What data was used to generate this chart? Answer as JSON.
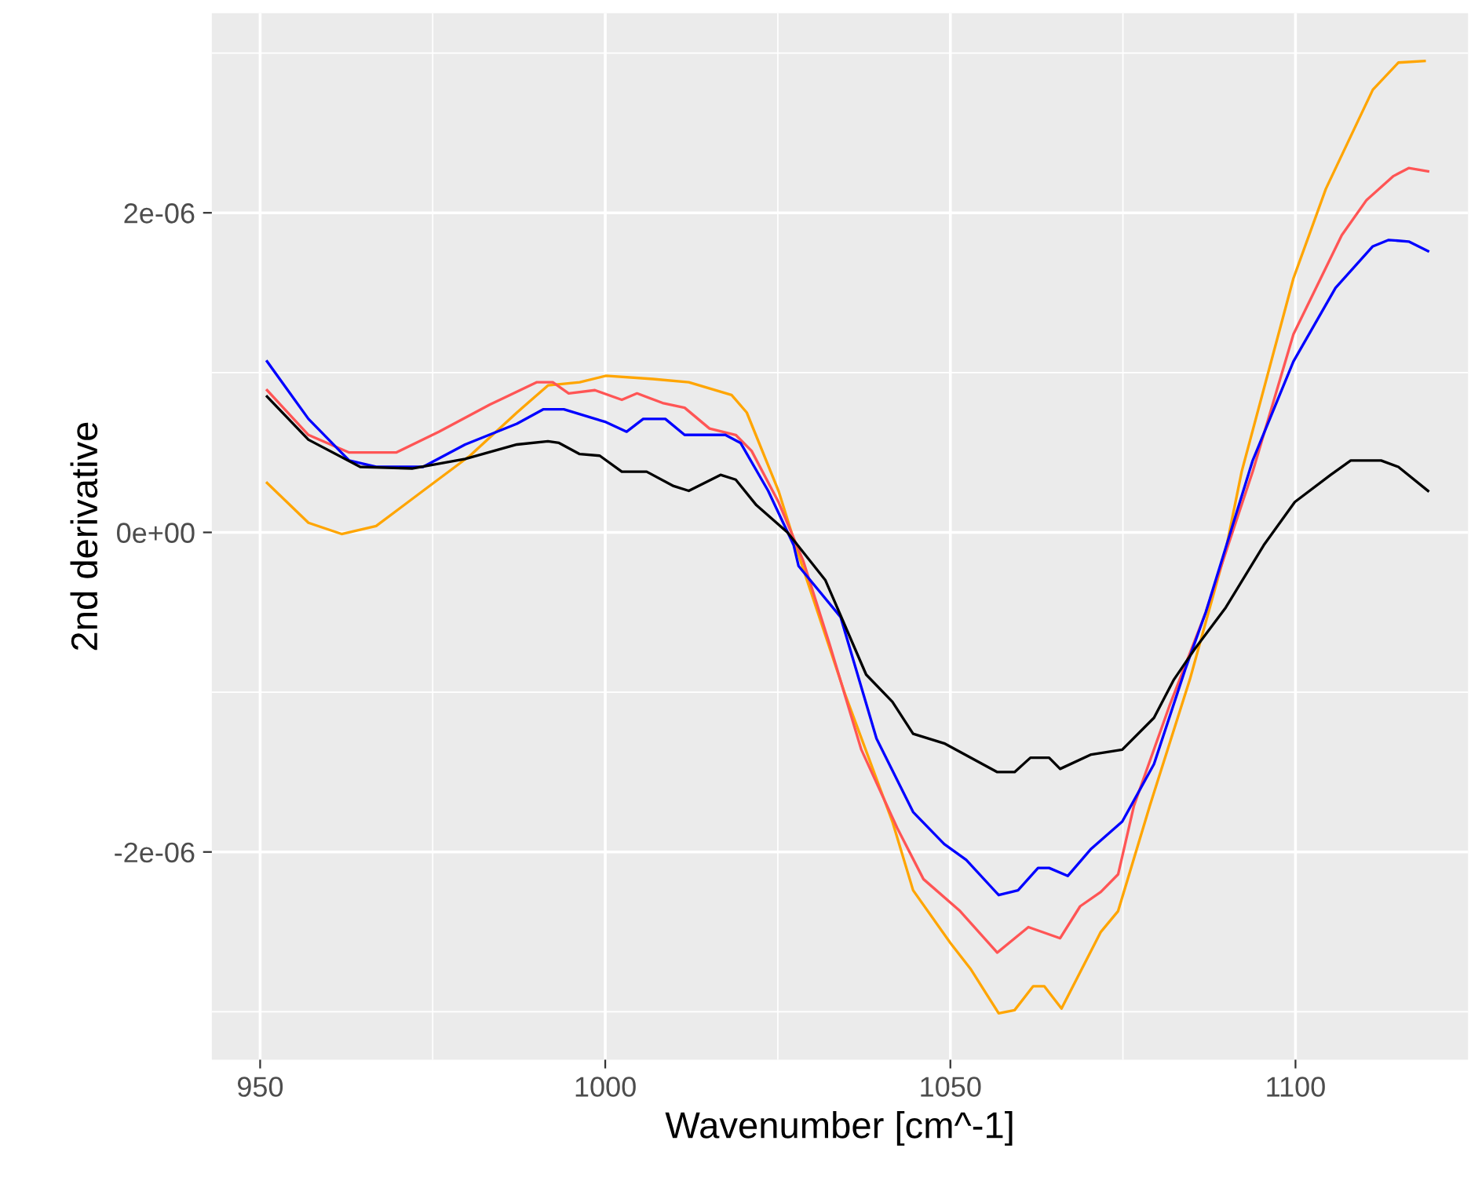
{
  "chart_data": {
    "type": "line",
    "xlabel": "Wavenumber [cm^-1]",
    "ylabel": "2nd derivative",
    "xlim": [
      943,
      1125
    ],
    "ylim": [
      -3.3e-06,
      3.25e-06
    ],
    "xticks": [
      950,
      1000,
      1050,
      1100
    ],
    "yticks": [
      {
        "value": -2e-06,
        "label": "-2e-06"
      },
      {
        "value": 0,
        "label": "0e+00"
      },
      {
        "value": 2e-06,
        "label": "2e-06"
      }
    ],
    "grid": true,
    "series": [
      {
        "color": "#ffa500",
        "x": [
          951,
          957,
          961.8,
          966.8,
          973.6,
          980.4,
          987.2,
          991.7,
          996.3,
          1000.1,
          1006.9,
          1012.1,
          1018.3,
          1020.5,
          1025.1,
          1028,
          1034.8,
          1041.6,
          1044.6,
          1050,
          1052.9,
          1057,
          1059.3,
          1062,
          1063.6,
          1066.1,
          1071.8,
          1074.3,
          1078.9,
          1084.7,
          1089.9,
          1092.2,
          1099.7,
          1104.4,
          1109,
          1111.2,
          1114.9,
          1118.7
        ],
        "values": [
          3.1e-07,
          6e-08,
          -1e-08,
          4e-08,
          2.6e-07,
          4.8e-07,
          7.5e-07,
          9.2e-07,
          9.4e-07,
          9.8e-07,
          9.6e-07,
          9.4e-07,
          8.6e-07,
          7.5e-07,
          2.6e-07,
          -1.4e-07,
          -1.02e-06,
          -1.81e-06,
          -2.24e-06,
          -2.57e-06,
          -2.73e-06,
          -3.01e-06,
          -2.99e-06,
          -2.84e-06,
          -2.84e-06,
          -2.98e-06,
          -2.5e-06,
          -2.37e-06,
          -1.71e-06,
          -9.2e-07,
          -1.1e-07,
          3.8e-07,
          1.59e-06,
          2.15e-06,
          2.57e-06,
          2.77e-06,
          2.94e-06,
          2.95e-06
        ]
      },
      {
        "color": "#ff5555",
        "x": [
          951,
          957,
          962.9,
          969.7,
          975.9,
          983.3,
          990.1,
          992.4,
          994.7,
          998.5,
          1002.4,
          1004.6,
          1008.3,
          1011.5,
          1015.1,
          1018.9,
          1021.2,
          1025.1,
          1028.7,
          1032.5,
          1037.1,
          1042.3,
          1046.1,
          1051.4,
          1056.8,
          1061.3,
          1065.9,
          1068.8,
          1071.8,
          1074.3,
          1076.6,
          1081.7,
          1087,
          1093.8,
          1099.7,
          1106.7,
          1110.3,
          1114.2,
          1116.4,
          1119.2
        ],
        "values": [
          8.9e-07,
          6.1e-07,
          5e-07,
          5e-07,
          6.3e-07,
          8e-07,
          9.4e-07,
          9.4e-07,
          8.7e-07,
          8.9e-07,
          8.3e-07,
          8.7e-07,
          8.1e-07,
          7.8e-07,
          6.5e-07,
          6.1e-07,
          5.1e-07,
          1.9e-07,
          -1.8e-07,
          -7e-07,
          -1.36e-06,
          -1.85e-06,
          -2.17e-06,
          -2.37e-06,
          -2.63e-06,
          -2.47e-06,
          -2.54e-06,
          -2.34e-06,
          -2.25e-06,
          -2.14e-06,
          -1.71e-06,
          -1.09e-06,
          -5e-07,
          3.8e-07,
          1.24e-06,
          1.86e-06,
          2.08e-06,
          2.23e-06,
          2.28e-06,
          2.26e-06
        ]
      },
      {
        "color": "#0000ff",
        "x": [
          951,
          957,
          962.9,
          966.8,
          973.6,
          979.7,
          987.2,
          991,
          994,
          1000.1,
          1003.1,
          1005.5,
          1008.7,
          1011.5,
          1017.4,
          1019.6,
          1023.6,
          1027.3,
          1028,
          1034.1,
          1039.3,
          1044.6,
          1049.1,
          1052.3,
          1057,
          1059.8,
          1062.7,
          1064.3,
          1067,
          1070.4,
          1074.9,
          1079.5,
          1084,
          1087,
          1093.8,
          1099.7,
          1105.8,
          1111.2,
          1113.5,
          1116.4,
          1119.2
        ],
        "values": [
          1.07e-06,
          7.1e-07,
          4.5e-07,
          4.1e-07,
          4.1e-07,
          5.5e-07,
          6.8e-07,
          7.7e-07,
          7.7e-07,
          6.9e-07,
          6.3e-07,
          7.1e-07,
          7.1e-07,
          6.1e-07,
          6.1e-07,
          5.6e-07,
          2.6e-07,
          -8e-08,
          -2.1e-07,
          -5.3e-07,
          -1.29e-06,
          -1.75e-06,
          -1.95e-06,
          -2.05e-06,
          -2.27e-06,
          -2.24e-06,
          -2.1e-06,
          -2.1e-06,
          -2.15e-06,
          -1.98e-06,
          -1.81e-06,
          -1.45e-06,
          -8.6e-07,
          -5e-07,
          4.5e-07,
          1.07e-06,
          1.53e-06,
          1.79e-06,
          1.83e-06,
          1.82e-06,
          1.76e-06
        ]
      },
      {
        "color": "#000000",
        "x": [
          951,
          957,
          964.5,
          972,
          979.7,
          987.2,
          991.7,
          993.3,
          996.3,
          999.2,
          1002.4,
          1006,
          1009.9,
          1012.1,
          1016.7,
          1018.9,
          1021.9,
          1026.4,
          1031.9,
          1037.8,
          1041.6,
          1044.6,
          1049.1,
          1056.8,
          1059.3,
          1061.6,
          1064.3,
          1065.9,
          1070.4,
          1074.9,
          1079.5,
          1082.4,
          1085.4,
          1089.9,
          1095.4,
          1099.9,
          1105.1,
          1108,
          1112.4,
          1114.9,
          1119.2
        ],
        "values": [
          8.5e-07,
          5.8e-07,
          4.1e-07,
          4e-07,
          4.6e-07,
          5.5e-07,
          5.7e-07,
          5.6e-07,
          4.9e-07,
          4.8e-07,
          3.8e-07,
          3.8e-07,
          2.9e-07,
          2.6e-07,
          3.6e-07,
          3.3e-07,
          1.7e-07,
          0,
          -3e-07,
          -8.9e-07,
          -1.06e-06,
          -1.26e-06,
          -1.32e-06,
          -1.5e-06,
          -1.5e-06,
          -1.41e-06,
          -1.41e-06,
          -1.48e-06,
          -1.39e-06,
          -1.36e-06,
          -1.16e-06,
          -9.2e-07,
          -7.3e-07,
          -4.7e-07,
          -8e-08,
          1.9e-07,
          3.6e-07,
          4.5e-07,
          4.5e-07,
          4.1e-07,
          2.6e-07
        ]
      }
    ]
  }
}
